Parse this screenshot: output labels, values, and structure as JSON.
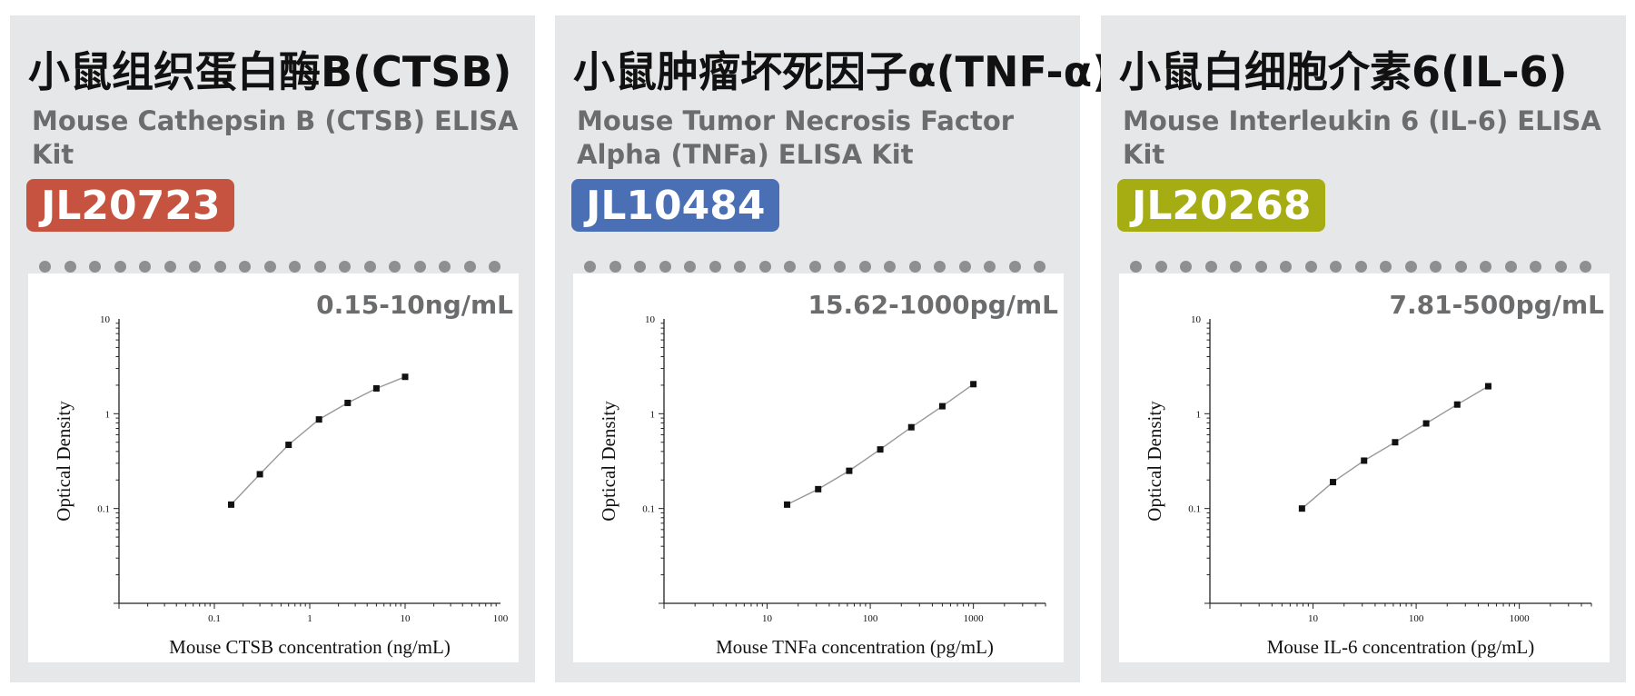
{
  "cards": [
    {
      "cn_title": "小鼠组织蛋白酶B(CTSB)",
      "en_title": "Mouse Cathepsin B (CTSB) ELISA Kit",
      "catalog": "JL20723",
      "badge_color": "#c6533f",
      "range": "0.15-10ng/mL"
    },
    {
      "cn_title": "小鼠肿瘤坏死因子α(TNF-α)",
      "en_title": "Mouse Tumor Necrosis Factor Alpha (TNFa) ELISA Kit",
      "catalog": "JL10484",
      "badge_color": "#4a6fb5",
      "range": "15.62-1000pg/mL"
    },
    {
      "cn_title": "小鼠白细胞介素6(IL-6)",
      "en_title": "Mouse Interleukin 6 (IL-6) ELISA Kit",
      "catalog": "JL20268",
      "badge_color": "#a5ad13",
      "range": "7.81-500pg/mL"
    }
  ],
  "chart_data": [
    {
      "type": "scatter",
      "xscale": "log",
      "yscale": "log",
      "xlabel": "Mouse CTSB concentration (ng/mL)",
      "ylabel": "Optical Density",
      "xlim": [
        0.01,
        100
      ],
      "ylim": [
        0.01,
        10
      ],
      "x_ticks": [
        "0.1",
        "1",
        "10",
        "100"
      ],
      "y_ticks": [
        "0.1",
        "1",
        "10"
      ],
      "grid": false,
      "fit_line": true,
      "x": [
        0.15,
        0.3,
        0.6,
        1.25,
        2.5,
        5,
        10
      ],
      "y": [
        0.11,
        0.23,
        0.47,
        0.87,
        1.3,
        1.85,
        2.45
      ]
    },
    {
      "type": "scatter",
      "xscale": "log",
      "yscale": "log",
      "xlabel": "Mouse TNFa concentration (pg/mL)",
      "ylabel": "Optical Density",
      "xlim": [
        1,
        5000
      ],
      "ylim": [
        0.01,
        10
      ],
      "x_ticks": [
        "10",
        "100",
        "1000"
      ],
      "y_ticks": [
        "0.1",
        "1",
        "10"
      ],
      "grid": false,
      "fit_line": true,
      "x": [
        15.62,
        31.25,
        62.5,
        125,
        250,
        500,
        1000
      ],
      "y": [
        0.11,
        0.16,
        0.25,
        0.42,
        0.72,
        1.2,
        2.05
      ]
    },
    {
      "type": "scatter",
      "xscale": "log",
      "yscale": "log",
      "xlabel": "Mouse IL-6 concentration (pg/mL)",
      "ylabel": "Optical Density",
      "xlim": [
        1,
        5000
      ],
      "ylim": [
        0.01,
        10
      ],
      "x_ticks": [
        "10",
        "100",
        "1000"
      ],
      "y_ticks": [
        "0.1",
        "1",
        "10"
      ],
      "grid": false,
      "fit_line": true,
      "x": [
        7.81,
        15.62,
        31.25,
        62.5,
        125,
        250,
        500
      ],
      "y": [
        0.1,
        0.19,
        0.32,
        0.5,
        0.79,
        1.25,
        1.95
      ]
    }
  ]
}
